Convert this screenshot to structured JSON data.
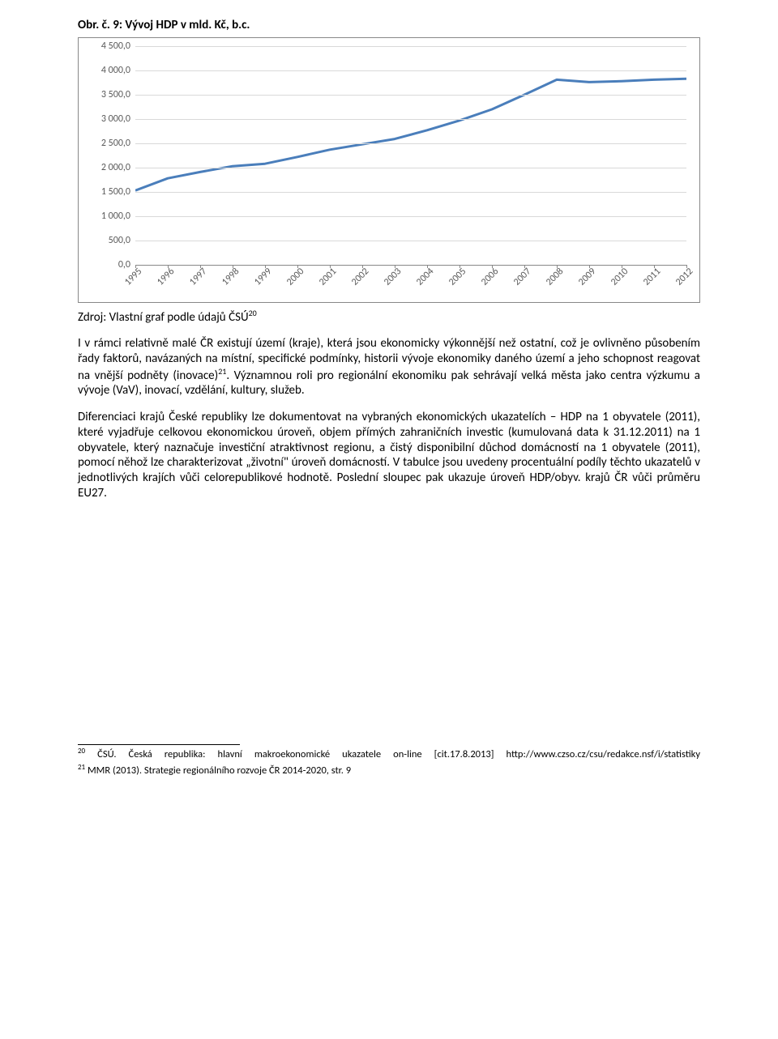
{
  "title": "Obr. č. 9: Vývoj HDP  v mld. Kč, b.c.",
  "chart": {
    "type": "line",
    "background_color": "#ffffff",
    "border_color": "#888888",
    "grid_color": "#d9d9d9",
    "axis_line_color": "#888888",
    "line_color": "#4a7ebb",
    "line_width": 3,
    "ylim": [
      0,
      4500
    ],
    "ytick_step": 500,
    "yticks": [
      "0,0",
      "500,0",
      "1 000,0",
      "1 500,0",
      "2 000,0",
      "2 500,0",
      "3 000,0",
      "3 500,0",
      "4 000,0",
      "4 500,0"
    ],
    "x_categories": [
      "1995",
      "1996",
      "1997",
      "1998",
      "1999",
      "2000",
      "2001",
      "2002",
      "2003",
      "2004",
      "2005",
      "2006",
      "2007",
      "2008",
      "2009",
      "2010",
      "2011",
      "2012"
    ],
    "values": [
      1530,
      1780,
      1910,
      2030,
      2080,
      2220,
      2370,
      2480,
      2590,
      2770,
      2970,
      3200,
      3500,
      3810,
      3760,
      3780,
      3810,
      3830
    ],
    "tick_label_fontsize": 12,
    "tick_label_color": "#595959"
  },
  "source_label_pre": "Zdroj: Vlastní graf podle údajů ČSÚ",
  "source_sup": "20",
  "para1_a": "I v rámci relativně malé ČR existují území (kraje), která jsou ekonomicky výkonnější než ostatní, což je ovlivněno působením řady faktorů, navázaných na místní, specifické podmínky, historii vývoje ekonomiky daného území a jeho schopnost reagovat na vnější podněty (inovace)",
  "para1_sup": "21",
  "para1_b": ". Významnou roli pro regionální ekonomiku pak sehrávají velká města jako centra výzkumu a vývoje (VaV), inovací, vzdělání, kultury, služeb.",
  "para2": "Diferenciaci krajů České republiky lze dokumentovat na vybraných ekonomických ukazatelích – HDP na 1 obyvatele (2011), které vyjadřuje celkovou ekonomickou úroveň,  objem přímých zahraničních investic (kumulovaná data k 31.12.2011) na 1 obyvatele, který naznačuje investiční atraktivnost regionu, a čistý disponibilní důchod domácností na 1 obyvatele (2011), pomocí něhož lze charakterizovat „životní\" úroveň domácností. V tabulce jsou uvedeny procentuální podíly těchto ukazatelů v jednotlivých krajích vůči celorepublikové hodnotě. Poslední sloupec pak ukazuje úroveň HDP/obyv. krajů ČR vůči průměru EU27.",
  "footnote1_sup": "20",
  "footnote1_a": " ČSÚ. Česká republika: hlavní makroekonomické ukazatele on-line [cit.17.8.2013] http://www.czso.cz/csu/redakce.nsf/i/statistiky",
  "footnote2_sup": "21",
  "footnote2_a": " MMR (2013). Strategie regionálního rozvoje ČR 2014-2020, str. 9"
}
